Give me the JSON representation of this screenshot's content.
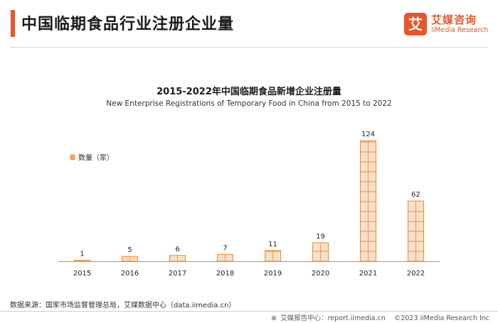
{
  "header": {
    "title": "中国临期食品行业注册企业量"
  },
  "brand": {
    "mark": "艾",
    "name": "艾媒咨询",
    "sub": "iiMedia Research"
  },
  "source_text": "数据来源：国家市场监督管理总局，艾媒数据中心（data.iimedia.cn）",
  "footer": {
    "report": "艾媒报告中心：report.iimedia.cn",
    "copyright": "©2023  iiMedia Research  Inc"
  },
  "colors": {
    "accent": "#e8562b",
    "bar": "#f4a460",
    "bar_outline": "#f08a2b",
    "text": "#222222"
  },
  "chart_data": {
    "type": "bar",
    "title": "2015-2022年中国临期食品新增企业注册量",
    "subtitle": "New Enterprise Registrations of Temporary Food in China from 2015 to 2022",
    "legend": "数量（家）",
    "legend_position": "top-left",
    "categories": [
      "2015",
      "2016",
      "2017",
      "2018",
      "2019",
      "2020",
      "2021",
      "2022"
    ],
    "series": [
      {
        "name": "数量（家）",
        "values": [
          1,
          5,
          6,
          7,
          11,
          19,
          124,
          62
        ]
      }
    ],
    "data_labels": [
      "1",
      "5",
      "6",
      "7",
      "11",
      "19",
      "124",
      "62"
    ],
    "ylim": [
      0,
      130
    ],
    "grid": false
  }
}
